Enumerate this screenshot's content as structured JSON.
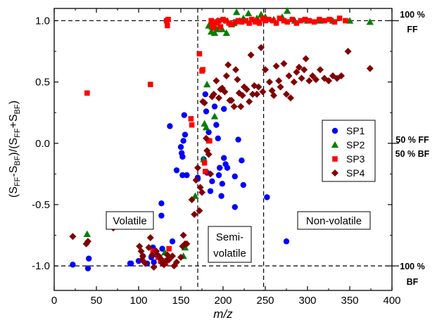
{
  "chart_data": {
    "type": "scatter",
    "xlabel": "m/z",
    "ylabel": "(SFF-SBF)/(SFF+SBF)",
    "ylabel_parts": {
      "open": "(S",
      "sub1": "FF",
      "minus": "-S",
      "sub2": "BF",
      "mid": ")/(S",
      "sub3": "FF",
      "plus": "+S",
      "sub4": "BF",
      "close": ")"
    },
    "xlim": [
      0,
      400
    ],
    "ylim": [
      -1.2,
      1.1
    ],
    "x_ticks": [
      0,
      50,
      100,
      150,
      200,
      250,
      300,
      350,
      400
    ],
    "y_ticks": [
      "-1.0",
      "-0.5",
      "0.0",
      "0.5",
      "1.0"
    ],
    "y_tick_values": [
      -1.0,
      -0.5,
      0.0,
      0.5,
      1.0
    ],
    "grid": false,
    "legend_position": "right",
    "reference_lines": {
      "horizontal": [
        1.0,
        -1.0
      ],
      "vertical": [
        170,
        248
      ]
    },
    "right_labels": {
      "top_line1": "100 %",
      "top_line2": "FF",
      "mid_line1": "50 % FF",
      "mid_line2": "50 % BF",
      "bottom_line1": "100 %",
      "bottom_line2": "BF"
    },
    "regions": {
      "volatile": "Volatile",
      "semi_line1": "Semi-",
      "semi_line2": "volatile",
      "nonvolatile": "Non-volatile"
    },
    "series": [
      {
        "name": "SP1",
        "marker": "circle",
        "color": "#0000ff",
        "points": [
          [
            22,
            -0.99
          ],
          [
            40,
            -1.02
          ],
          [
            41,
            -0.94
          ],
          [
            90,
            -0.98
          ],
          [
            91,
            -0.98
          ],
          [
            100,
            -0.96
          ],
          [
            105,
            -0.92
          ],
          [
            110,
            -0.98
          ],
          [
            115,
            -0.93
          ],
          [
            117,
            -0.85
          ],
          [
            118,
            -0.97
          ],
          [
            121,
            -0.91
          ],
          [
            127,
            -0.49
          ],
          [
            127,
            -0.59
          ],
          [
            128,
            -0.86
          ],
          [
            135,
            -0.95
          ],
          [
            137,
            0.14
          ],
          [
            140,
            -0.8
          ],
          [
            145,
            -0.22
          ],
          [
            150,
            -0.03
          ],
          [
            151,
            -0.08
          ],
          [
            152,
            -0.11
          ],
          [
            152,
            -0.26
          ],
          [
            153,
            0.02
          ],
          [
            154,
            0.23
          ],
          [
            155,
            0.07
          ],
          [
            157,
            -0.26
          ],
          [
            170,
            -0.28
          ],
          [
            170,
            -0.29
          ],
          [
            177,
            -0.13
          ],
          [
            179,
            0.4
          ],
          [
            180,
            0.26
          ],
          [
            181,
            -0.24
          ],
          [
            183,
            0.09
          ],
          [
            185,
            -0.39
          ],
          [
            187,
            -0.31
          ],
          [
            190,
            0.3
          ],
          [
            192,
            0.15
          ],
          [
            194,
            0.04
          ],
          [
            195,
            -0.26
          ],
          [
            196,
            -0.2
          ],
          [
            198,
            -0.43
          ],
          [
            199,
            -0.33
          ],
          [
            201,
            0.28
          ],
          [
            201,
            -0.12
          ],
          [
            203,
            -0.17
          ],
          [
            205,
            -0.2
          ],
          [
            214,
            -0.27
          ],
          [
            214,
            -0.52
          ],
          [
            218,
            0.03
          ],
          [
            222,
            -0.14
          ],
          [
            224,
            -0.34
          ],
          [
            252,
            -0.44
          ],
          [
            275,
            -0.8
          ]
        ]
      },
      {
        "name": "SP2",
        "marker": "triangle",
        "color": "#008000",
        "points": [
          [
            39,
            -0.74
          ],
          [
            131,
            -0.89
          ],
          [
            153,
            -0.92
          ],
          [
            155,
            -0.85
          ],
          [
            167,
            -0.43
          ],
          [
            177,
            -0.13
          ],
          [
            178,
            0.16
          ],
          [
            180,
            0.13
          ],
          [
            181,
            0.48
          ],
          [
            183,
            0.96
          ],
          [
            186,
            0.91
          ],
          [
            187,
            0.95
          ],
          [
            190,
            0.9
          ],
          [
            190,
            0.22
          ],
          [
            193,
            0.93
          ],
          [
            194,
            1.0
          ],
          [
            199,
            0.93
          ],
          [
            204,
            0.9
          ],
          [
            205,
            1.0
          ],
          [
            210,
            0.97
          ],
          [
            213,
            0.98
          ],
          [
            216,
            1.07
          ],
          [
            220,
            1.0
          ],
          [
            224,
            1.02
          ],
          [
            226,
            1.0
          ],
          [
            230,
            1.06
          ],
          [
            240,
            1.02
          ],
          [
            242,
            1.0
          ],
          [
            245,
            1.05
          ],
          [
            250,
            1.03
          ],
          [
            260,
            1.01
          ],
          [
            270,
            1.03
          ],
          [
            276,
            1.08
          ],
          [
            285,
            1.0
          ],
          [
            300,
            1.0
          ],
          [
            315,
            1.0
          ],
          [
            330,
            1.0
          ],
          [
            350,
            1.0
          ],
          [
            374,
            0.99
          ]
        ]
      },
      {
        "name": "SP3",
        "marker": "square",
        "color": "#ff0000",
        "points": [
          [
            39,
            0.41
          ],
          [
            114,
            0.48
          ],
          [
            117,
            -0.88
          ],
          [
            123,
            -0.93
          ],
          [
            126,
            -0.96
          ],
          [
            130,
            -0.96
          ],
          [
            132,
            -0.98
          ],
          [
            133,
            1.0
          ],
          [
            134,
            0.96
          ],
          [
            135,
            1.01
          ],
          [
            136,
            -0.86
          ],
          [
            162,
            0.2
          ],
          [
            163,
            0.15
          ],
          [
            172,
            0.73
          ],
          [
            175,
            0.59
          ],
          [
            176,
            0.6
          ],
          [
            178,
            -0.16
          ],
          [
            179,
            -0.23
          ],
          [
            183,
            0.02
          ],
          [
            184,
            0.02
          ],
          [
            186,
            1.0
          ],
          [
            187,
            0.96
          ],
          [
            188,
            0.98
          ],
          [
            189,
            0.94
          ],
          [
            191,
            0.99
          ],
          [
            193,
            0.98
          ],
          [
            195,
            1.0
          ],
          [
            197,
            0.95
          ],
          [
            200,
            1.01
          ],
          [
            203,
            1.0
          ],
          [
            207,
            0.98
          ],
          [
            210,
            0.97
          ],
          [
            215,
            0.99
          ],
          [
            218,
            1.0
          ],
          [
            222,
            0.99
          ],
          [
            227,
            1.0
          ],
          [
            231,
            0.98
          ],
          [
            234,
            1.01
          ],
          [
            238,
            0.99
          ],
          [
            240,
            1.0
          ],
          [
            243,
            0.98
          ],
          [
            247,
            1.02
          ],
          [
            250,
            1.0
          ],
          [
            254,
            1.01
          ],
          [
            259,
            1.0
          ],
          [
            263,
            0.98
          ],
          [
            267,
            1.02
          ],
          [
            272,
            1.0
          ],
          [
            276,
            0.99
          ],
          [
            282,
            1.01
          ],
          [
            287,
            0.98
          ],
          [
            292,
            1.0
          ],
          [
            297,
            1.01
          ],
          [
            302,
            1.0
          ],
          [
            308,
            0.99
          ],
          [
            314,
            1.01
          ],
          [
            320,
            1.0
          ],
          [
            326,
            1.01
          ],
          [
            332,
            0.99
          ],
          [
            338,
            1.02
          ],
          [
            345,
            1.0
          ]
        ]
      },
      {
        "name": "SP4",
        "marker": "diamond",
        "color": "#800000",
        "points": [
          [
            22,
            -0.76
          ],
          [
            38,
            -0.82
          ],
          [
            40,
            -0.8
          ],
          [
            70,
            -0.69
          ],
          [
            101,
            -0.84
          ],
          [
            103,
            -0.88
          ],
          [
            104,
            -0.95
          ],
          [
            105,
            -0.92
          ],
          [
            108,
            -0.98
          ],
          [
            112,
            -0.85
          ],
          [
            114,
            -0.77
          ],
          [
            116,
            -0.91
          ],
          [
            118,
            -1.01
          ],
          [
            121,
            -0.88
          ],
          [
            124,
            -0.92
          ],
          [
            126,
            -0.94
          ],
          [
            128,
            -0.98
          ],
          [
            130,
            -0.99
          ],
          [
            132,
            -0.96
          ],
          [
            134,
            -0.91
          ],
          [
            136,
            -0.95
          ],
          [
            140,
            -0.92
          ],
          [
            142,
            -1.0
          ],
          [
            145,
            -0.97
          ],
          [
            150,
            -0.93
          ],
          [
            152,
            -0.84
          ],
          [
            153,
            -0.75
          ],
          [
            155,
            -0.82
          ],
          [
            157,
            -0.82
          ],
          [
            163,
            -0.46
          ],
          [
            166,
            -0.58
          ],
          [
            168,
            -0.3
          ],
          [
            170,
            -0.2
          ],
          [
            172,
            -0.55
          ],
          [
            173,
            -0.36
          ],
          [
            175,
            -0.4
          ],
          [
            176,
            0.34
          ],
          [
            178,
            0.33
          ],
          [
            180,
            0.04
          ],
          [
            181,
            -0.06
          ],
          [
            183,
            -0.09
          ],
          [
            185,
            -0.25
          ],
          [
            187,
            0.38
          ],
          [
            189,
            0.4
          ],
          [
            192,
            0.51
          ],
          [
            195,
            0.37
          ],
          [
            197,
            0.44
          ],
          [
            199,
            0.45
          ],
          [
            202,
            0.42
          ],
          [
            204,
            0.55
          ],
          [
            206,
            0.64
          ],
          [
            208,
            0.35
          ],
          [
            210,
            0.35
          ],
          [
            213,
            0.3
          ],
          [
            215,
            0.6
          ],
          [
            217,
            0.52
          ],
          [
            219,
            0.41
          ],
          [
            221,
            0.3
          ],
          [
            223,
            0.39
          ],
          [
            225,
            0.46
          ],
          [
            228,
            0.44
          ],
          [
            231,
            0.34
          ],
          [
            233,
            0.72
          ],
          [
            235,
            0.4
          ],
          [
            237,
            0.47
          ],
          [
            240,
            0.4
          ],
          [
            242,
            0.46
          ],
          [
            245,
            0.78
          ],
          [
            247,
            0.42
          ],
          [
            250,
            0.6
          ],
          [
            255,
            0.5
          ],
          [
            258,
            0.43
          ],
          [
            260,
            0.39
          ],
          [
            263,
            0.63
          ],
          [
            266,
            0.51
          ],
          [
            268,
            0.46
          ],
          [
            272,
            0.65
          ],
          [
            275,
            0.4
          ],
          [
            278,
            0.55
          ],
          [
            280,
            0.37
          ],
          [
            284,
            0.5
          ],
          [
            287,
            0.58
          ],
          [
            290,
            0.62
          ],
          [
            293,
            0.53
          ],
          [
            296,
            0.6
          ],
          [
            298,
            0.69
          ],
          [
            302,
            0.51
          ],
          [
            306,
            0.55
          ],
          [
            310,
            0.52
          ],
          [
            315,
            0.6
          ],
          [
            320,
            0.53
          ],
          [
            325,
            0.51
          ],
          [
            330,
            0.55
          ],
          [
            335,
            0.53
          ],
          [
            340,
            0.55
          ],
          [
            348,
            0.75
          ],
          [
            374,
            0.61
          ]
        ]
      }
    ]
  }
}
